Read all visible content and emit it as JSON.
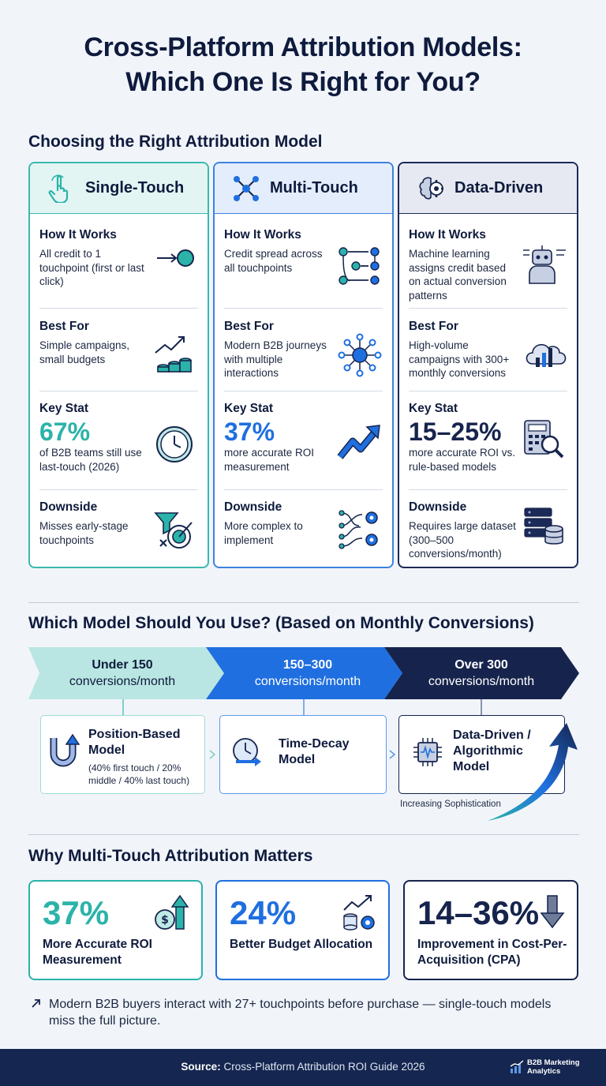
{
  "title": {
    "line1": "Cross-Platform Attribution Models:",
    "line2": "Which One Is Right for You?"
  },
  "section1": {
    "heading": "Choosing the Right Attribution Model"
  },
  "cards": [
    {
      "name": "Single-Touch",
      "icon": "hand-pointer-icon",
      "how_label": "How It Works",
      "how_text": "All credit to 1 touchpoint (first or last click)",
      "best_label": "Best For",
      "best_text": "Simple campaigns, small budgets",
      "stat_label": "Key Stat",
      "stat_value": "67%",
      "stat_text": "of B2B teams still use last-touch (2026)",
      "down_label": "Downside",
      "down_text": "Misses early-stage touchpoints"
    },
    {
      "name": "Multi-Touch",
      "icon": "network-nodes-icon",
      "how_label": "How It Works",
      "how_text": "Credit spread across all touchpoints",
      "best_label": "Best For",
      "best_text": "Modern B2B journeys with multiple interactions",
      "stat_label": "Key Stat",
      "stat_value": "37%",
      "stat_text": "more accurate ROI measurement",
      "down_label": "Downside",
      "down_text": "More complex to implement"
    },
    {
      "name": "Data-Driven",
      "icon": "brain-gear-icon",
      "how_label": "How It Works",
      "how_text": "Machine learning assigns credit based on actual conversion patterns",
      "best_label": "Best For",
      "best_text": "High-volume campaigns with 300+ monthly conversions",
      "stat_label": "Key Stat",
      "stat_value": "15–25%",
      "stat_text": "more accurate ROI vs. rule-based models",
      "down_label": "Downside",
      "down_text": "Requires large dataset (300–500 conversions/month)"
    }
  ],
  "section2": {
    "heading": "Which Model Should You Use? (Based on Monthly Conversions)",
    "tiers": [
      {
        "range": "Under 150",
        "unit": "conversions/month"
      },
      {
        "range": "150–300",
        "unit": "conversions/month"
      },
      {
        "range": "Over 300",
        "unit": "conversions/month"
      }
    ],
    "models": [
      {
        "title_line1": "Position-Based",
        "title_line2": "Model",
        "note": "(40% first touch / 20% middle / 40% last touch)"
      },
      {
        "title_line1": "Time-Decay",
        "title_line2": "Model"
      },
      {
        "title_line1": "Data-Driven /",
        "title_line2": "Algorithmic",
        "title_line3": "Model"
      }
    ],
    "sophistication_label": "Increasing Sophistication"
  },
  "section3": {
    "heading": "Why Multi-Touch Attribution Matters",
    "stats": [
      {
        "value": "37%",
        "label": "More Accurate ROI Measurement",
        "icon": "dollar-up-icon"
      },
      {
        "value": "24%",
        "label": "Better Budget Allocation",
        "icon": "coins-gear-chart-icon"
      },
      {
        "value": "14–36%",
        "label": "Improvement in Cost-Per-Acquisition (CPA)",
        "icon": "arrow-down-icon"
      }
    ],
    "note": "Modern B2B buyers interact with 27+ touchpoints before purchase — single-touch models miss the full picture."
  },
  "footer": {
    "source_label": "Source:",
    "source_text": "Cross-Platform Attribution ROI Guide 2026",
    "brand_line1": "B2B Marketing",
    "brand_line2": "Analytics"
  },
  "colors": {
    "teal": "#2bb3a9",
    "blue": "#1f6fe0",
    "navy": "#16244d",
    "footer": "#152650"
  }
}
